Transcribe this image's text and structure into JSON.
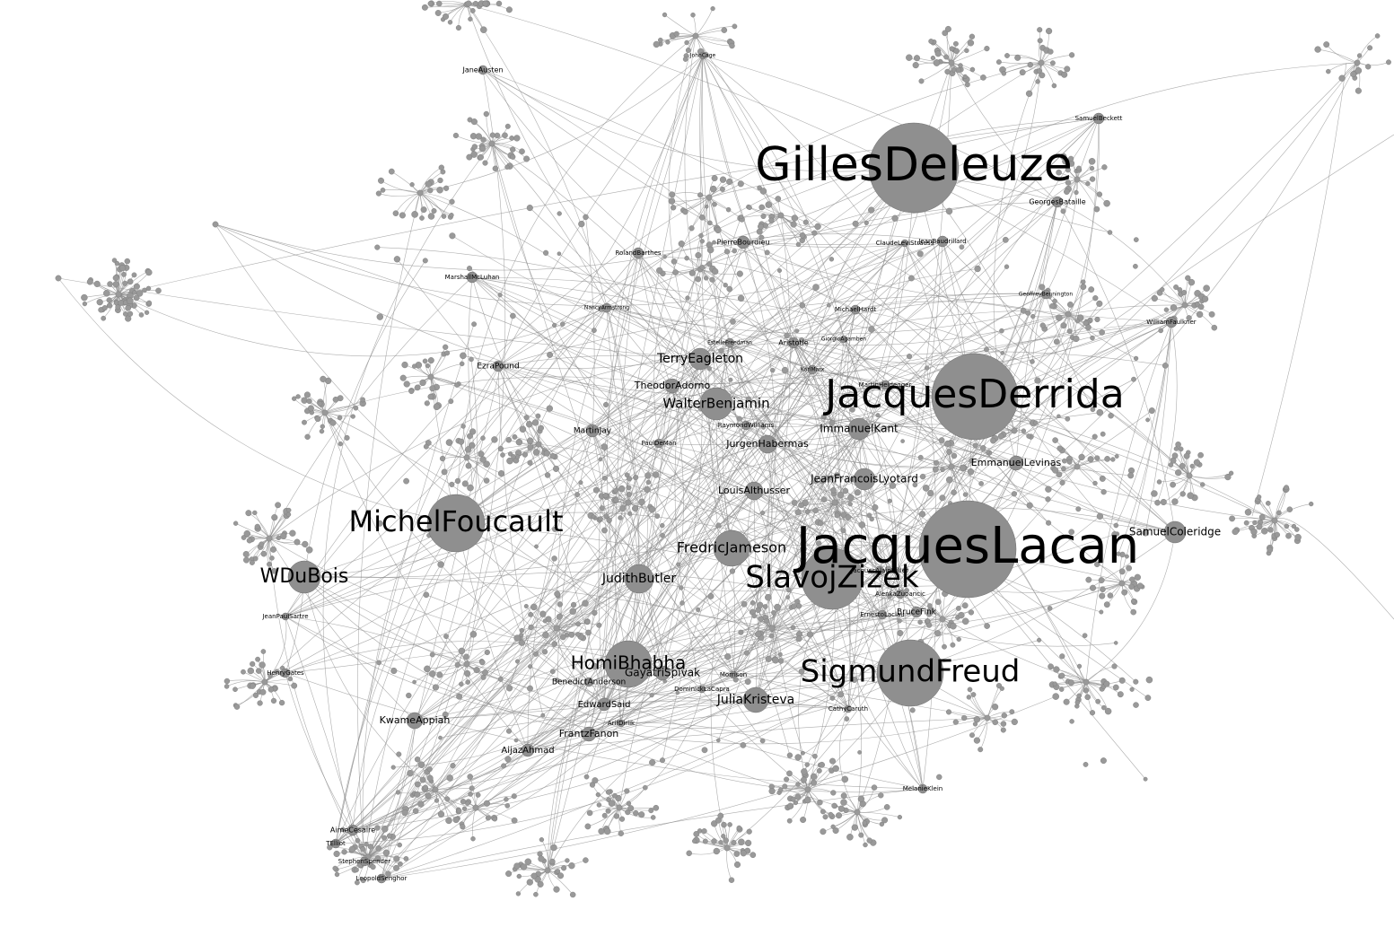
{
  "graph": {
    "node_color": "#8f8f8f",
    "edge_color": "#8a8a8a",
    "label_color": "#000000",
    "nodes": [
      {
        "id": "GillesDeleuze",
        "label": "GillesDeleuze"
      },
      {
        "id": "JacquesDerrida",
        "label": "JacquesDerrida"
      },
      {
        "id": "JacquesLacan",
        "label": "JacquesLacan"
      },
      {
        "id": "SigmundFreud",
        "label": "SigmundFreud"
      },
      {
        "id": "MichelFoucault",
        "label": "MichelFoucault"
      },
      {
        "id": "SlavojZizek",
        "label": "SlavojZizek"
      },
      {
        "id": "HomiBhabha",
        "label": "HomiBhabha"
      },
      {
        "id": "WDuBois",
        "label": "WDuBois"
      },
      {
        "id": "FredricJameson",
        "label": "FredricJameson"
      },
      {
        "id": "WalterBenjamin",
        "label": "WalterBenjamin"
      },
      {
        "id": "TerryEagleton",
        "label": "TerryEagleton"
      },
      {
        "id": "JudithButler",
        "label": "JudithButler"
      },
      {
        "id": "JuliaKristeva",
        "label": "JuliaKristeva"
      },
      {
        "id": "SamuelColeridge",
        "label": "SamuelColeridge"
      },
      {
        "id": "ImmanuelKant",
        "label": "ImmanuelKant"
      },
      {
        "id": "JeanFrancoisLyotard",
        "label": "JeanFrancoisLyotard"
      },
      {
        "id": "LouisAlthusser",
        "label": "LouisAlthusser"
      },
      {
        "id": "JurgenHabermas",
        "label": "JurgenHabermas"
      },
      {
        "id": "EmmanuelLevinas",
        "label": "EmmanuelLevinas"
      },
      {
        "id": "TheodorAdorno",
        "label": "TheodorAdorno"
      },
      {
        "id": "GayatriSpivak",
        "label": "GayatriSpivak"
      },
      {
        "id": "FrantzFanon",
        "label": "FrantzFanon"
      },
      {
        "id": "EdwardSaid",
        "label": "EdwardSaid"
      },
      {
        "id": "KwameAppiah",
        "label": "KwameAppiah"
      },
      {
        "id": "AijazAhmad",
        "label": "AijazAhmad"
      },
      {
        "id": "BenedictAnderson",
        "label": "BenedictAnderson"
      },
      {
        "id": "MartinJay",
        "label": "MartinJay"
      },
      {
        "id": "EzraPound",
        "label": "EzraPound"
      },
      {
        "id": "JaneAusten",
        "label": "JaneAusten"
      },
      {
        "id": "PierreBourdieu",
        "label": "PierreBourdieu"
      },
      {
        "id": "RolandBarthes",
        "label": "RolandBarthes"
      },
      {
        "id": "GeorgesBataille",
        "label": "GeorgesBataille"
      },
      {
        "id": "MichaelHardt",
        "label": "MichaelHardt"
      },
      {
        "id": "Aristotle",
        "label": "Aristotle"
      },
      {
        "id": "MarshallMcLuhan",
        "label": "MarshallMcLuhan"
      },
      {
        "id": "NancyArmstrong",
        "label": "NancyArmstrong"
      },
      {
        "id": "AimeCesaire",
        "label": "AimeCesaire"
      },
      {
        "id": "MelanieKlein",
        "label": "MelanieKlein"
      },
      {
        "id": "BruceFink",
        "label": "BruceFink"
      },
      {
        "id": "SamuelBeckett",
        "label": "SamuelBeckett"
      },
      {
        "id": "JohnCage",
        "label": "JohnCage"
      },
      {
        "id": "PaulDeMan",
        "label": "PaulDeMan"
      },
      {
        "id": "HenryGates",
        "label": "HenryGates"
      },
      {
        "id": "JeanPaulSartre",
        "label": "JeanPaulSartre"
      },
      {
        "id": "RaymondWilliams",
        "label": "RaymondWilliams"
      },
      {
        "id": "MartinHeidegger",
        "label": "MartinHeidegger"
      },
      {
        "id": "KarlMarx",
        "label": "KarlMarx"
      },
      {
        "id": "DominickLaCapra",
        "label": "DominickLaCapra"
      },
      {
        "id": "ArifDirlik",
        "label": "ArifDirlik"
      },
      {
        "id": "CathyCaruth",
        "label": "CathyCaruth"
      },
      {
        "id": "LeopoldSenghor",
        "label": "LeopoldSenghor"
      },
      {
        "id": "TSEliot",
        "label": "TElliot"
      },
      {
        "id": "StephenSpender",
        "label": "StephenSpender"
      },
      {
        "id": "AlenkaZupancic",
        "label": "AlenkaZupancic"
      },
      {
        "id": "ErnestoLaclau",
        "label": "ErnestoLaclau"
      },
      {
        "id": "JacquesAlainMiller",
        "label": "JacquesAlainMiller"
      },
      {
        "id": "JeanBaudrillard",
        "label": "JeanBaudrillard"
      },
      {
        "id": "ClaudeLeviStrauss",
        "label": "ClaudeLeviStrauss"
      },
      {
        "id": "GiorgioAgamben",
        "label": "GiorgioAgamben"
      },
      {
        "id": "WilliamFaulkner",
        "label": "WilliamFaulkner"
      },
      {
        "id": "GeoffreyBennington",
        "label": "GeoffreyBennington"
      },
      {
        "id": "EstelleFreedman",
        "label": "EstelleFreedman"
      },
      {
        "id": "ToniMorrison",
        "label": "Morrison"
      }
    ]
  }
}
